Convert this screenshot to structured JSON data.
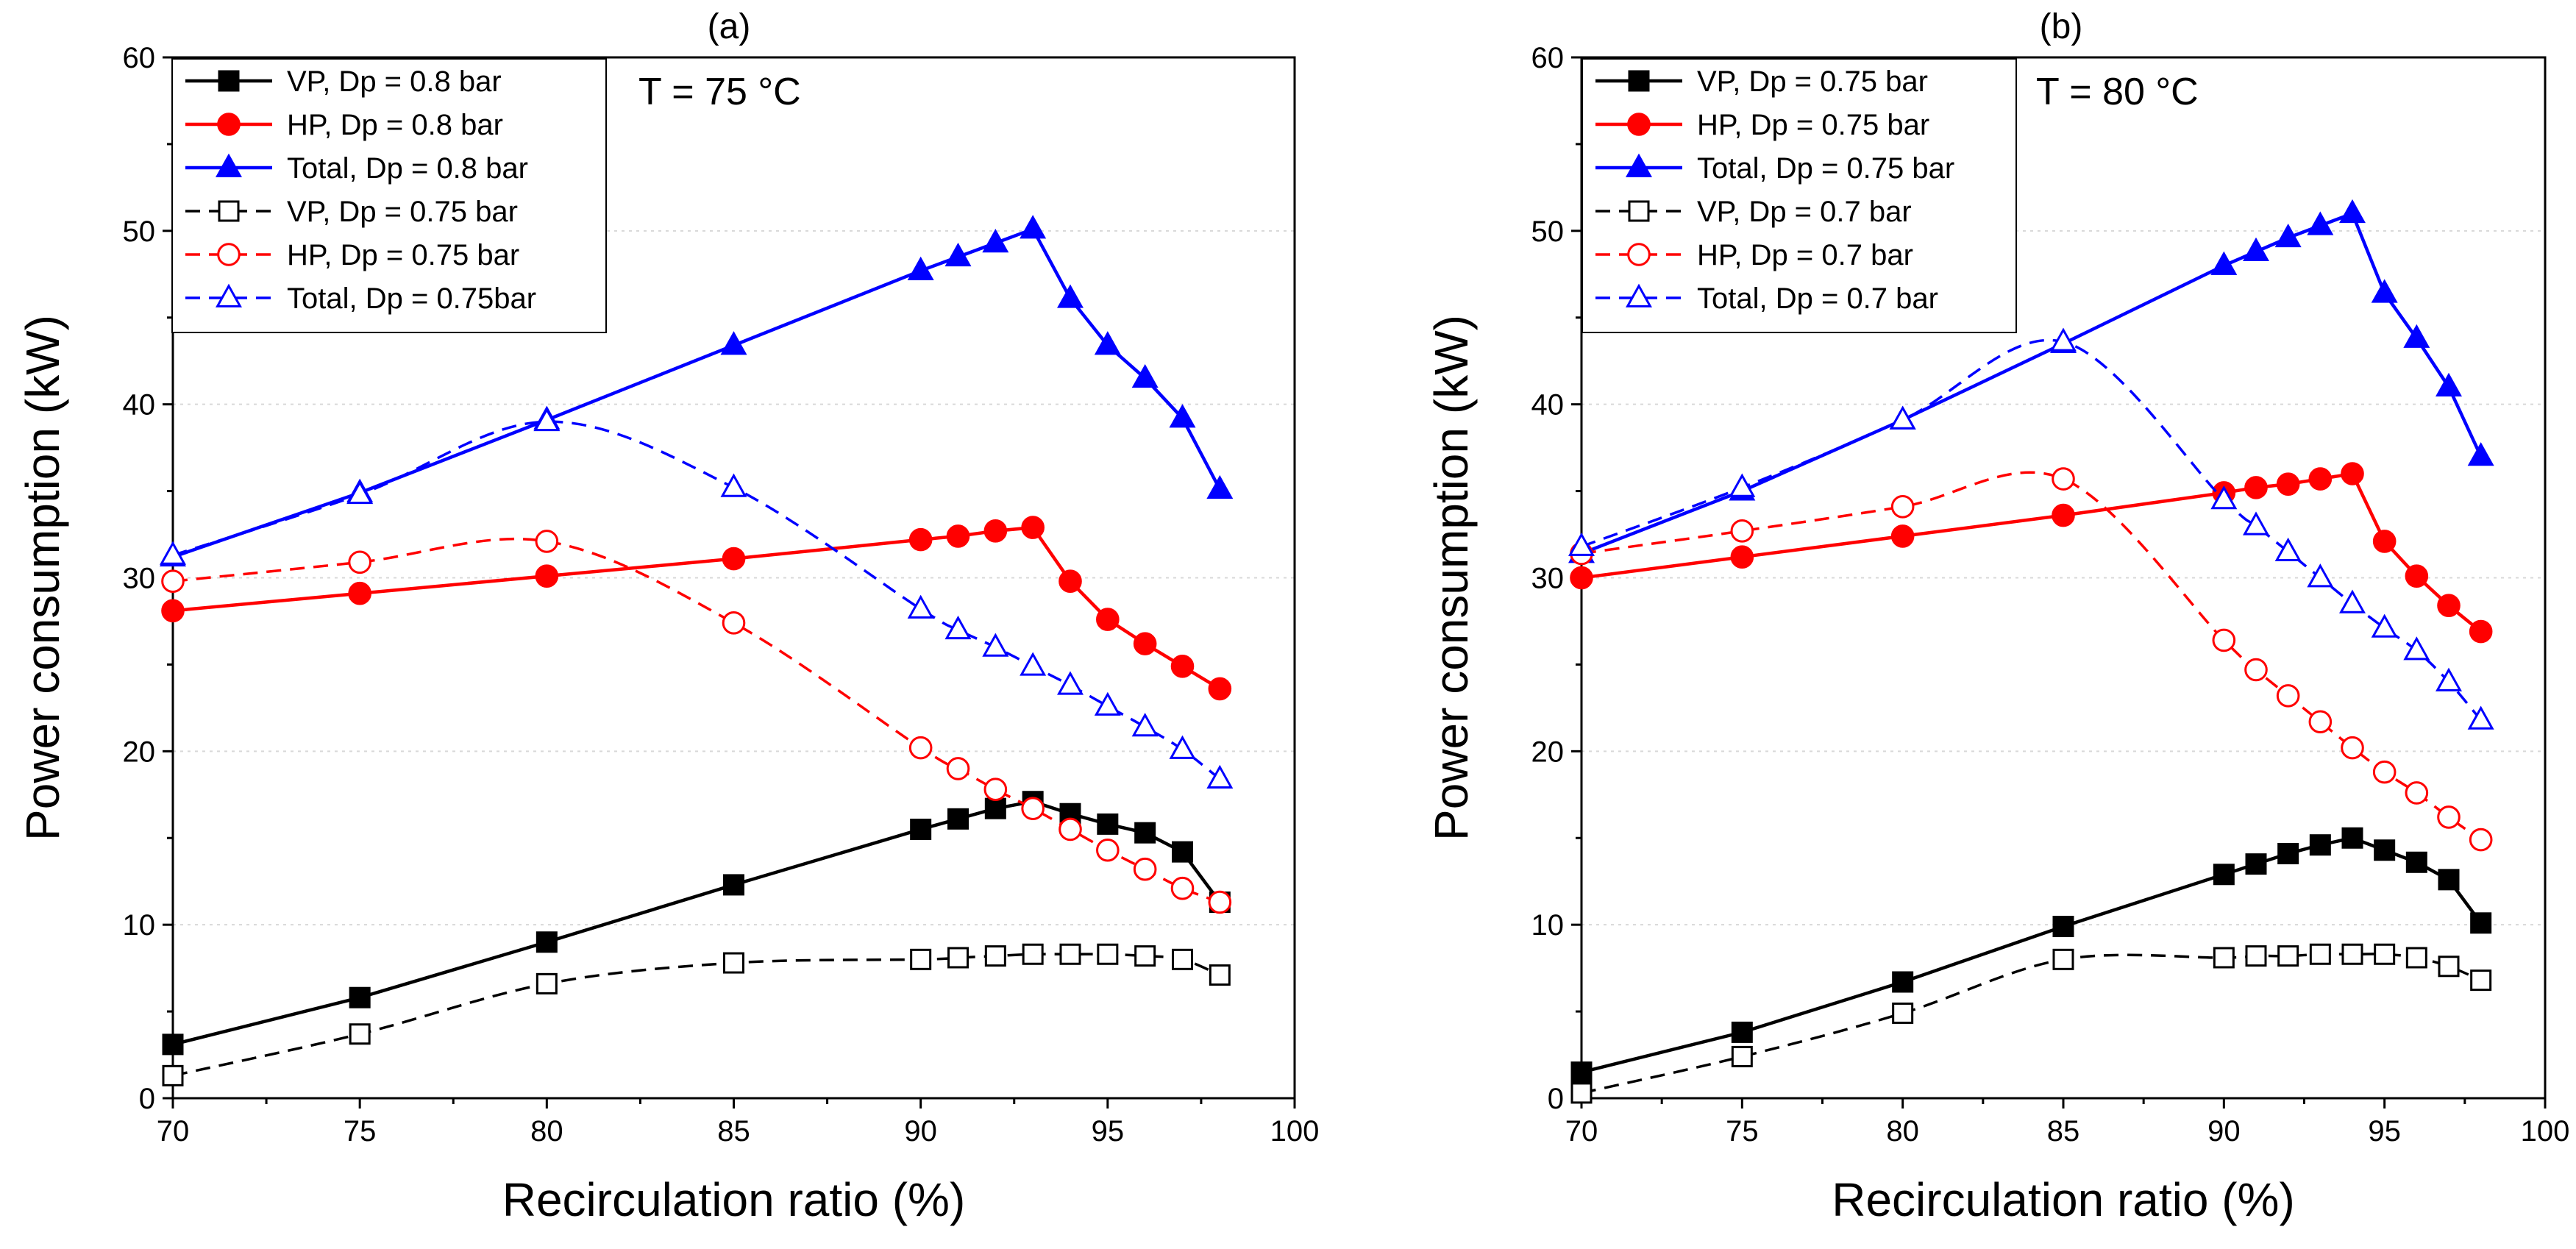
{
  "chart_data": [
    {
      "type": "line",
      "panel_label": "(a)",
      "annotation": "T = 75 °C",
      "xlabel": "Recirculation ratio (%)",
      "ylabel": "Power consumption (kW)",
      "xlim": [
        70,
        100
      ],
      "ylim": [
        0,
        60
      ],
      "xticks": [
        "70",
        "75",
        "80",
        "85",
        "90",
        "95",
        "100"
      ],
      "yticks": [
        "0",
        "10",
        "20",
        "30",
        "40",
        "50",
        "60"
      ],
      "grid": "horizontal-dotted",
      "legend_position": "top-left",
      "series": [
        {
          "name": "VP, Dp = 0.8 bar",
          "color": "#000000",
          "marker": "square",
          "filled": true,
          "dashed": false,
          "x": [
            70,
            75,
            80,
            85,
            90,
            91,
            92,
            93,
            94,
            95,
            96,
            97,
            98
          ],
          "y": [
            3.1,
            5.8,
            9.0,
            12.3,
            15.5,
            16.1,
            16.7,
            17.1,
            16.4,
            15.8,
            15.3,
            14.2,
            11.3
          ]
        },
        {
          "name": "HP, Dp = 0.8 bar",
          "color": "#ff0000",
          "marker": "circle",
          "filled": true,
          "dashed": false,
          "x": [
            70,
            75,
            80,
            85,
            90,
            91,
            92,
            93,
            94,
            95,
            96,
            97,
            98
          ],
          "y": [
            28.1,
            29.1,
            30.1,
            31.1,
            32.2,
            32.4,
            32.7,
            32.9,
            29.8,
            27.6,
            26.2,
            24.9,
            23.6
          ]
        },
        {
          "name": "Total, Dp = 0.8 bar",
          "color": "#0000ff",
          "marker": "triangle",
          "filled": true,
          "dashed": false,
          "x": [
            70,
            75,
            80,
            85,
            90,
            91,
            92,
            93,
            94,
            95,
            96,
            97,
            98
          ],
          "y": [
            31.2,
            34.9,
            39.1,
            43.4,
            47.7,
            48.5,
            49.3,
            50.1,
            46.1,
            43.4,
            41.5,
            39.2,
            35.1
          ]
        },
        {
          "name": "VP, Dp = 0.75 bar",
          "color": "#000000",
          "marker": "square",
          "filled": false,
          "dashed": true,
          "x": [
            70,
            75,
            80,
            85,
            90,
            91,
            92,
            93,
            94,
            95,
            96,
            97,
            98
          ],
          "y": [
            1.3,
            3.7,
            6.6,
            7.8,
            8.0,
            8.1,
            8.2,
            8.3,
            8.3,
            8.3,
            8.2,
            8.0,
            7.1
          ]
        },
        {
          "name": "HP, Dp = 0.75 bar",
          "color": "#ff0000",
          "marker": "circle",
          "filled": false,
          "dashed": true,
          "x": [
            70,
            75,
            80,
            85,
            90,
            91,
            92,
            93,
            94,
            95,
            96,
            97,
            98
          ],
          "y": [
            29.8,
            30.9,
            32.1,
            27.4,
            20.2,
            19.0,
            17.8,
            16.7,
            15.5,
            14.3,
            13.2,
            12.1,
            11.3
          ]
        },
        {
          "name": "Total, Dp = 0.75bar",
          "color": "#0000ff",
          "marker": "triangle",
          "filled": false,
          "dashed": true,
          "x": [
            70,
            75,
            80,
            85,
            90,
            91,
            92,
            93,
            94,
            95,
            96,
            97,
            98
          ],
          "y": [
            31.3,
            34.8,
            39.0,
            35.2,
            28.2,
            27.0,
            26.0,
            24.9,
            23.8,
            22.6,
            21.4,
            20.1,
            18.4
          ]
        }
      ]
    },
    {
      "type": "line",
      "panel_label": "(b)",
      "annotation": "T = 80 °C",
      "xlabel": "Recirculation ratio (%)",
      "ylabel": "Power consumption (kW)",
      "xlim": [
        70,
        100
      ],
      "ylim": [
        0,
        60
      ],
      "xticks": [
        "70",
        "75",
        "80",
        "85",
        "90",
        "95",
        "100"
      ],
      "yticks": [
        "0",
        "10",
        "20",
        "30",
        "40",
        "50",
        "60"
      ],
      "grid": "horizontal-dotted",
      "legend_position": "top-left",
      "series": [
        {
          "name": "VP, Dp = 0.75 bar",
          "color": "#000000",
          "marker": "square",
          "filled": true,
          "dashed": false,
          "x": [
            70,
            75,
            80,
            85,
            90,
            91,
            92,
            93,
            94,
            95,
            96,
            97,
            98
          ],
          "y": [
            1.5,
            3.8,
            6.7,
            9.9,
            12.9,
            13.5,
            14.1,
            14.6,
            15.0,
            14.3,
            13.6,
            12.6,
            10.1
          ]
        },
        {
          "name": "HP, Dp = 0.75 bar",
          "color": "#ff0000",
          "marker": "circle",
          "filled": true,
          "dashed": false,
          "x": [
            70,
            75,
            80,
            85,
            90,
            91,
            92,
            93,
            94,
            95,
            96,
            97,
            98
          ],
          "y": [
            30.0,
            31.2,
            32.4,
            33.6,
            34.9,
            35.2,
            35.4,
            35.7,
            36.0,
            32.1,
            30.1,
            28.4,
            26.9
          ]
        },
        {
          "name": "Total, Dp = 0.75 bar",
          "color": "#0000ff",
          "marker": "triangle",
          "filled": true,
          "dashed": false,
          "x": [
            70,
            75,
            80,
            85,
            90,
            91,
            92,
            93,
            94,
            95,
            96,
            97,
            98
          ],
          "y": [
            31.4,
            35.0,
            39.1,
            43.5,
            48.0,
            48.8,
            49.6,
            50.3,
            51.0,
            46.4,
            43.8,
            41.0,
            37.0
          ]
        },
        {
          "name": "VP, Dp = 0.7 bar",
          "color": "#000000",
          "marker": "square",
          "filled": false,
          "dashed": true,
          "x": [
            70,
            75,
            80,
            85,
            90,
            91,
            92,
            93,
            94,
            95,
            96,
            97,
            98
          ],
          "y": [
            0.3,
            2.4,
            4.9,
            8.0,
            8.1,
            8.2,
            8.2,
            8.3,
            8.3,
            8.3,
            8.1,
            7.6,
            6.8
          ]
        },
        {
          "name": "HP, Dp = 0.7 bar",
          "color": "#ff0000",
          "marker": "circle",
          "filled": false,
          "dashed": true,
          "x": [
            70,
            75,
            80,
            85,
            90,
            91,
            92,
            93,
            94,
            95,
            96,
            97,
            98
          ],
          "y": [
            31.4,
            32.7,
            34.1,
            35.7,
            26.4,
            24.7,
            23.2,
            21.7,
            20.2,
            18.8,
            17.6,
            16.2,
            14.9
          ]
        },
        {
          "name": "Total, Dp = 0.7 bar",
          "color": "#0000ff",
          "marker": "triangle",
          "filled": false,
          "dashed": true,
          "x": [
            70,
            75,
            80,
            85,
            90,
            91,
            92,
            93,
            94,
            95,
            96,
            97,
            98
          ],
          "y": [
            31.8,
            35.2,
            39.1,
            43.6,
            34.5,
            33.0,
            31.5,
            30.0,
            28.5,
            27.1,
            25.8,
            24.0,
            21.8
          ]
        }
      ]
    }
  ]
}
